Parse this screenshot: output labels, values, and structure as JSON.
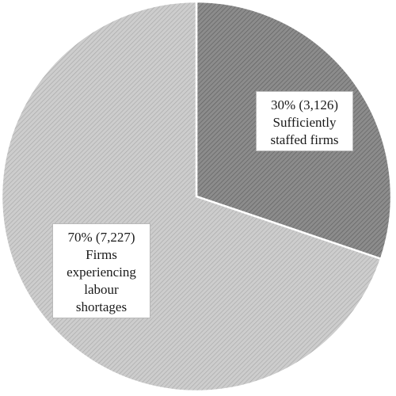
{
  "chart_data": {
    "type": "pie",
    "title": "",
    "slices": [
      {
        "label": "Sufficiently staffed firms",
        "percent": 30,
        "count": 3126,
        "color": "#8c8c8c",
        "label_lines": [
          "30% (3,126)",
          "Sufficiently",
          "staffed firms"
        ]
      },
      {
        "label": "Firms experiencing labour shortages",
        "percent": 70,
        "count": 7227,
        "color": "#c8c8c8",
        "label_lines": [
          "70% (7,227)",
          "Firms",
          "experiencing",
          "labour",
          "shortages"
        ]
      }
    ],
    "start": "12 o'clock",
    "direction": "clockwise",
    "fill_pattern": "diagonal hatch",
    "legend": "none"
  }
}
